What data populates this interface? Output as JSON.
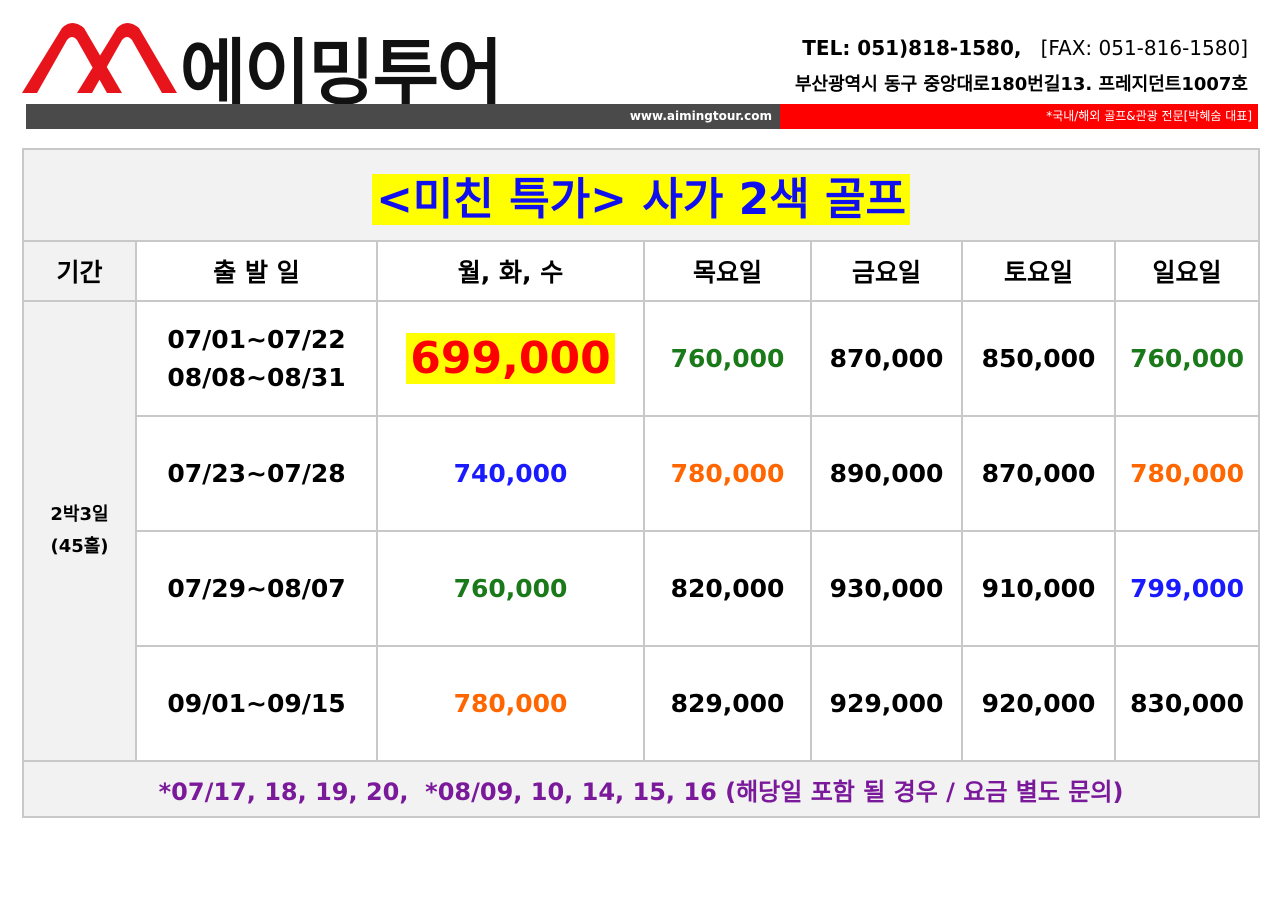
{
  "header": {
    "brand": "에이밍투어",
    "tel": "TEL: 051)818-1580,",
    "fax": "[FAX: 051-816-1580]",
    "address": "부산광역시 동구 중앙대로180번길13. 프레지던트1007호",
    "website": "www.aimingtour.com",
    "tagline": "*국내/해외 골프&관광 전문[박혜숨 대표]"
  },
  "table": {
    "title": "<미친 특가> 사가 2색 골프",
    "columns": [
      "기간",
      "출 발 일",
      "월, 화, 수",
      "목요일",
      "금요일",
      "토요일",
      "일요일"
    ],
    "period": [
      "2박3일",
      "(45홀)"
    ],
    "rows": [
      {
        "dates": [
          "07/01~07/22",
          "08/08~08/31"
        ],
        "prices": [
          {
            "text": "699,000",
            "color": "#ff0000",
            "highlight": "#ffff00"
          },
          {
            "text": "760,000",
            "color": "#1a7a1a"
          },
          {
            "text": "870,000",
            "color": "#000000"
          },
          {
            "text": "850,000",
            "color": "#000000"
          },
          {
            "text": "760,000",
            "color": "#1a7a1a"
          }
        ]
      },
      {
        "dates": [
          "07/23~07/28"
        ],
        "prices": [
          {
            "text": "740,000",
            "color": "#1a1aff"
          },
          {
            "text": "780,000",
            "color": "#ff6600"
          },
          {
            "text": "890,000",
            "color": "#000000"
          },
          {
            "text": "870,000",
            "color": "#000000"
          },
          {
            "text": "780,000",
            "color": "#ff6600"
          }
        ]
      },
      {
        "dates": [
          "07/29~08/07"
        ],
        "prices": [
          {
            "text": "760,000",
            "color": "#1a7a1a"
          },
          {
            "text": "820,000",
            "color": "#000000"
          },
          {
            "text": "930,000",
            "color": "#000000"
          },
          {
            "text": "910,000",
            "color": "#000000"
          },
          {
            "text": "799,000",
            "color": "#1a1aff"
          }
        ]
      },
      {
        "dates": [
          "09/01~09/15"
        ],
        "prices": [
          {
            "text": "780,000",
            "color": "#ff6600"
          },
          {
            "text": "829,000",
            "color": "#000000"
          },
          {
            "text": "929,000",
            "color": "#000000"
          },
          {
            "text": "920,000",
            "color": "#000000"
          },
          {
            "text": "830,000",
            "color": "#000000"
          }
        ]
      }
    ],
    "note": "*07/17, 18, 19, 20,  *08/09, 10, 14, 15, 16 (해당일 포함 될 경우 / 요금 별도 문의)"
  }
}
